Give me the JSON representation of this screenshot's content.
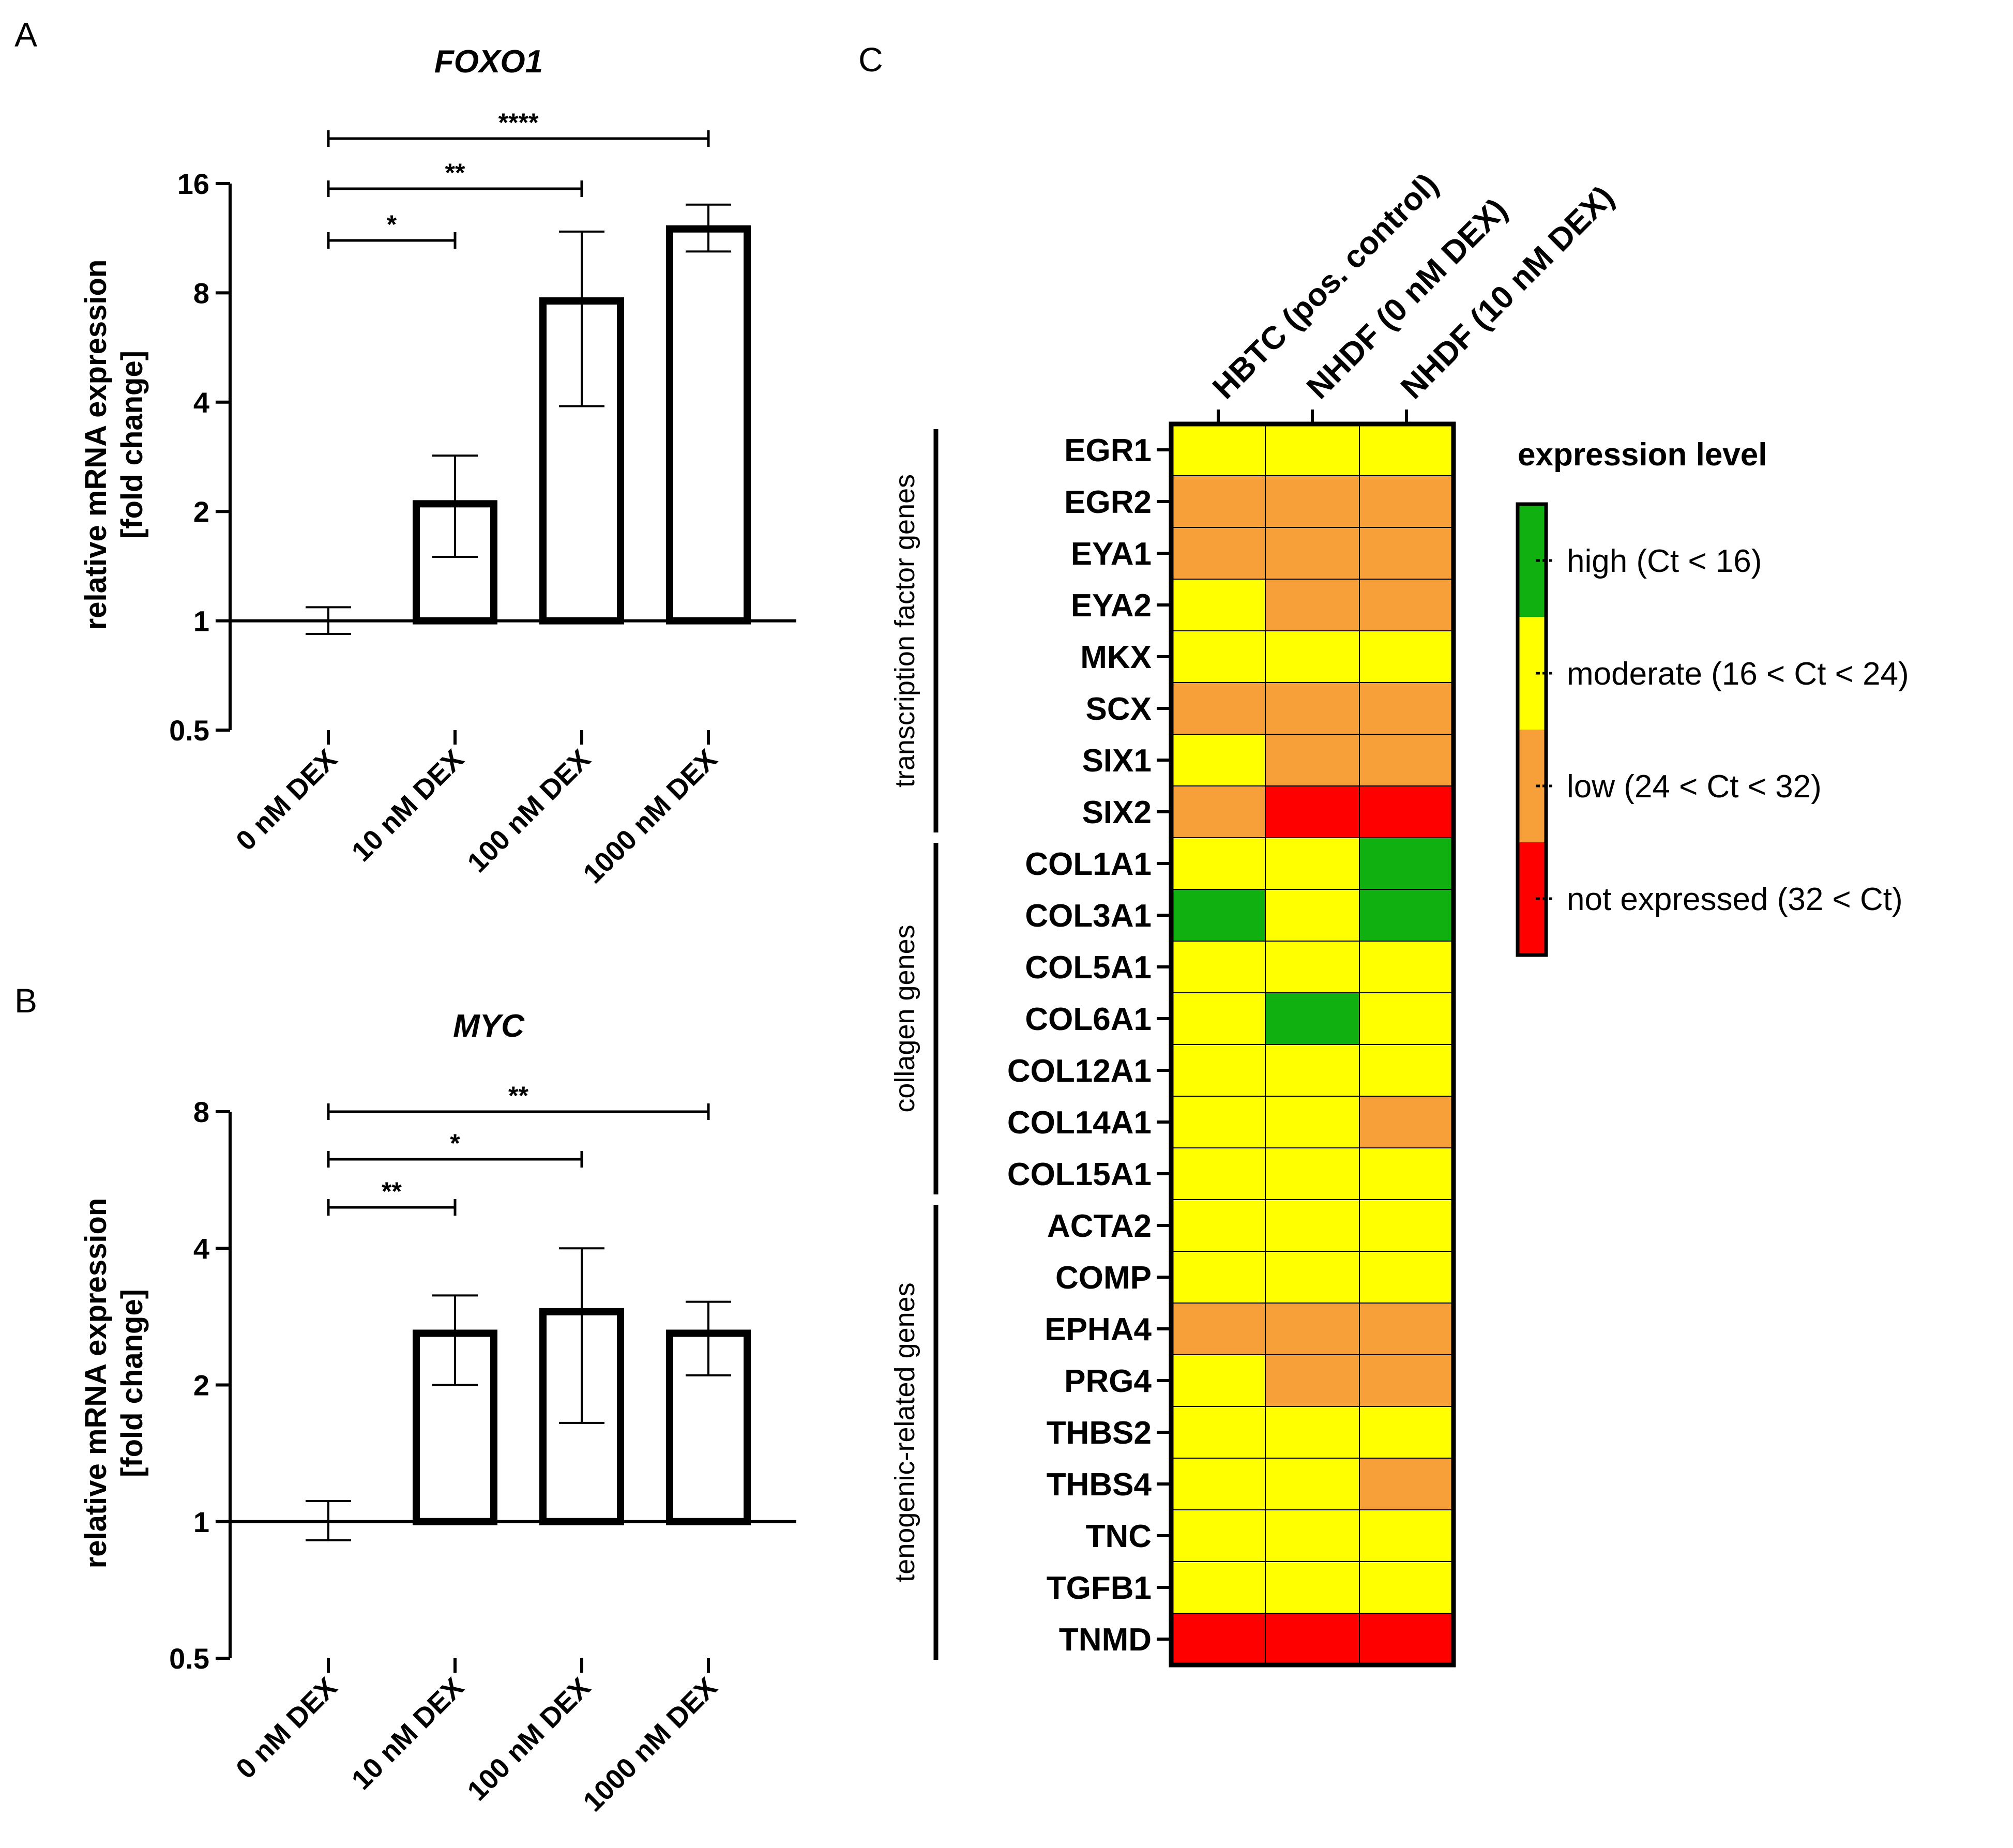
{
  "panels": {
    "a": "A",
    "b": "B",
    "c": "C"
  },
  "chart_data": [
    {
      "type": "bar",
      "panel": "A",
      "title": "FOXO1",
      "ylabel_line1": "relative mRNA expression",
      "ylabel_line2": "[fold change]",
      "xlabel": "",
      "yscale": "log2",
      "ylim": [
        0.5,
        16
      ],
      "yticks": [
        0.5,
        1,
        2,
        4,
        8,
        16
      ],
      "ytick_labels": [
        "0.5",
        "1",
        "2",
        "4",
        "8",
        "16"
      ],
      "baseline": 1,
      "categories": [
        "0 nM DEX",
        "10 nM DEX",
        "100 nM DEX",
        "1000 nM DEX"
      ],
      "values": [
        1.0,
        2.1,
        7.6,
        12.0
      ],
      "error_low": [
        0.92,
        1.5,
        3.9,
        10.4
      ],
      "error_high": [
        1.09,
        2.85,
        11.8,
        14.0
      ],
      "show_bar": [
        false,
        true,
        true,
        true
      ],
      "significance": [
        {
          "from": 0,
          "to": 1,
          "label": "*"
        },
        {
          "from": 0,
          "to": 2,
          "label": "**"
        },
        {
          "from": 0,
          "to": 3,
          "label": "****"
        }
      ]
    },
    {
      "type": "bar",
      "panel": "B",
      "title": "MYC",
      "ylabel_line1": "relative mRNA expression",
      "ylabel_line2": "[fold change]",
      "xlabel": "",
      "yscale": "log2",
      "ylim": [
        0.5,
        8
      ],
      "yticks": [
        0.5,
        1,
        2,
        4,
        8
      ],
      "ytick_labels": [
        "0.5",
        "1",
        "2",
        "4",
        "8"
      ],
      "baseline": 1,
      "categories": [
        "0 nM DEX",
        "10 nM DEX",
        "100 nM DEX",
        "1000 nM DEX"
      ],
      "values": [
        1.0,
        2.6,
        2.9,
        2.6
      ],
      "error_low": [
        0.91,
        2.0,
        1.65,
        2.1
      ],
      "error_high": [
        1.11,
        3.15,
        4.0,
        3.05
      ],
      "show_bar": [
        false,
        true,
        true,
        true
      ],
      "significance": [
        {
          "from": 0,
          "to": 1,
          "label": "**"
        },
        {
          "from": 0,
          "to": 2,
          "label": "*"
        },
        {
          "from": 0,
          "to": 3,
          "label": "**"
        }
      ]
    },
    {
      "type": "heatmap",
      "panel": "C",
      "columns": [
        "HBTC (pos. control)",
        "NHDF (0 nM DEX)",
        "NHDF (10 nM DEX)"
      ],
      "rows": [
        "EGR1",
        "EGR2",
        "EYA1",
        "EYA2",
        "MKX",
        "SCX",
        "SIX1",
        "SIX2",
        "COL1A1",
        "COL3A1",
        "COL5A1",
        "COL6A1",
        "COL12A1",
        "COL14A1",
        "COL15A1",
        "ACTA2",
        "COMP",
        "EPHA4",
        "PRG4",
        "THBS2",
        "THBS4",
        "TNC",
        "TGFB1",
        "TNMD"
      ],
      "groups": [
        {
          "label": "transcription factor genes",
          "start": 0,
          "end": 7
        },
        {
          "label": "collagen genes",
          "start": 8,
          "end": 14
        },
        {
          "label": "tenogenic-related genes",
          "start": 15,
          "end": 23
        }
      ],
      "levels": [
        "high",
        "moderate",
        "low",
        "not"
      ],
      "colors": {
        "high": "#10b010",
        "moderate": "#ffff00",
        "low": "#f7a03a",
        "not": "#ff0000"
      },
      "values": [
        [
          "moderate",
          "moderate",
          "moderate"
        ],
        [
          "low",
          "low",
          "low"
        ],
        [
          "low",
          "low",
          "low"
        ],
        [
          "moderate",
          "low",
          "low"
        ],
        [
          "moderate",
          "moderate",
          "moderate"
        ],
        [
          "low",
          "low",
          "low"
        ],
        [
          "moderate",
          "low",
          "low"
        ],
        [
          "low",
          "not",
          "not"
        ],
        [
          "moderate",
          "moderate",
          "high"
        ],
        [
          "high",
          "moderate",
          "high"
        ],
        [
          "moderate",
          "moderate",
          "moderate"
        ],
        [
          "moderate",
          "high",
          "moderate"
        ],
        [
          "moderate",
          "moderate",
          "moderate"
        ],
        [
          "moderate",
          "moderate",
          "low"
        ],
        [
          "moderate",
          "moderate",
          "moderate"
        ],
        [
          "moderate",
          "moderate",
          "moderate"
        ],
        [
          "moderate",
          "moderate",
          "moderate"
        ],
        [
          "low",
          "low",
          "low"
        ],
        [
          "moderate",
          "low",
          "low"
        ],
        [
          "moderate",
          "moderate",
          "moderate"
        ],
        [
          "moderate",
          "moderate",
          "low"
        ],
        [
          "moderate",
          "moderate",
          "moderate"
        ],
        [
          "moderate",
          "moderate",
          "moderate"
        ],
        [
          "not",
          "not",
          "not"
        ]
      ],
      "legend": {
        "title": "expression level",
        "entries": [
          {
            "level": "high",
            "label": "high (Ct < 16)"
          },
          {
            "level": "moderate",
            "label": "moderate (16 < Ct < 24)"
          },
          {
            "level": "low",
            "label": "low (24 < Ct < 32)"
          },
          {
            "level": "not",
            "label": "not expressed (32 < Ct)"
          }
        ]
      }
    }
  ]
}
